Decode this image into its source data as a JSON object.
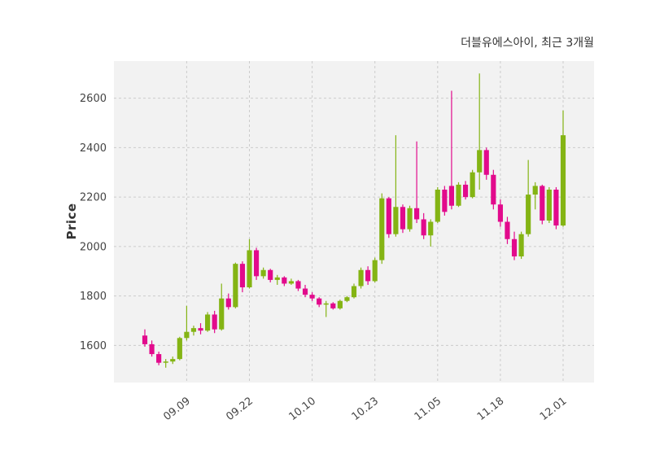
{
  "header": {
    "title": "더블유에스아이, 최근 3개월"
  },
  "chart_data": {
    "type": "candlestick",
    "title": "더블유에스아이, 최근 3개월",
    "ylabel": "Price",
    "ylim": [
      1450,
      2750
    ],
    "y_ticks": [
      1600,
      1800,
      2000,
      2200,
      2400,
      2600
    ],
    "x_ticks": [
      {
        "index": 6,
        "label": "09.09"
      },
      {
        "index": 15,
        "label": "09.22"
      },
      {
        "index": 24,
        "label": "10.10"
      },
      {
        "index": 33,
        "label": "10.23"
      },
      {
        "index": 42,
        "label": "11.05"
      },
      {
        "index": 51,
        "label": "11.18"
      },
      {
        "index": 60,
        "label": "12.01"
      }
    ],
    "grid": true,
    "legend": "none",
    "up_color": "#84b414",
    "down_color": "#e20a8c",
    "plot_bg": "#f2f2f2",
    "grid_color": "#cccccc",
    "grid_dash": "3,3",
    "candles_format": [
      "open",
      "high",
      "low",
      "close"
    ],
    "candles": [
      [
        1640,
        1665,
        1595,
        1605
      ],
      [
        1605,
        1620,
        1555,
        1565
      ],
      [
        1565,
        1575,
        1520,
        1530
      ],
      [
        1530,
        1545,
        1510,
        1535
      ],
      [
        1535,
        1555,
        1525,
        1545
      ],
      [
        1545,
        1635,
        1540,
        1630
      ],
      [
        1630,
        1760,
        1620,
        1655
      ],
      [
        1655,
        1680,
        1640,
        1670
      ],
      [
        1670,
        1690,
        1645,
        1660
      ],
      [
        1660,
        1735,
        1655,
        1725
      ],
      [
        1725,
        1740,
        1650,
        1665
      ],
      [
        1665,
        1850,
        1660,
        1790
      ],
      [
        1790,
        1810,
        1745,
        1755
      ],
      [
        1755,
        1935,
        1750,
        1930
      ],
      [
        1930,
        1940,
        1815,
        1835
      ],
      [
        1835,
        2030,
        1830,
        1985
      ],
      [
        1985,
        1995,
        1865,
        1880
      ],
      [
        1880,
        1915,
        1870,
        1905
      ],
      [
        1905,
        1910,
        1855,
        1865
      ],
      [
        1865,
        1885,
        1845,
        1875
      ],
      [
        1875,
        1880,
        1840,
        1850
      ],
      [
        1850,
        1870,
        1845,
        1860
      ],
      [
        1860,
        1865,
        1820,
        1830
      ],
      [
        1830,
        1845,
        1795,
        1805
      ],
      [
        1805,
        1815,
        1780,
        1790
      ],
      [
        1790,
        1795,
        1755,
        1765
      ],
      [
        1765,
        1780,
        1715,
        1770
      ],
      [
        1770,
        1775,
        1745,
        1750
      ],
      [
        1750,
        1785,
        1745,
        1780
      ],
      [
        1780,
        1800,
        1775,
        1795
      ],
      [
        1795,
        1850,
        1790,
        1840
      ],
      [
        1840,
        1915,
        1830,
        1905
      ],
      [
        1905,
        1920,
        1845,
        1860
      ],
      [
        1860,
        1955,
        1855,
        1945
      ],
      [
        1945,
        2215,
        1930,
        2195
      ],
      [
        2195,
        2200,
        2035,
        2050
      ],
      [
        2050,
        2450,
        2040,
        2160
      ],
      [
        2160,
        2170,
        2055,
        2070
      ],
      [
        2070,
        2165,
        2060,
        2155
      ],
      [
        2155,
        2425,
        2095,
        2110
      ],
      [
        2110,
        2135,
        2030,
        2045
      ],
      [
        2045,
        2110,
        2000,
        2100
      ],
      [
        2100,
        2240,
        2095,
        2230
      ],
      [
        2230,
        2245,
        2125,
        2140
      ],
      [
        2245,
        2630,
        2150,
        2165
      ],
      [
        2165,
        2260,
        2160,
        2250
      ],
      [
        2250,
        2265,
        2190,
        2200
      ],
      [
        2200,
        2310,
        2195,
        2300
      ],
      [
        2300,
        2700,
        2230,
        2390
      ],
      [
        2390,
        2400,
        2270,
        2290
      ],
      [
        2290,
        2310,
        2150,
        2170
      ],
      [
        2170,
        2190,
        2080,
        2100
      ],
      [
        2100,
        2120,
        2010,
        2030
      ],
      [
        2030,
        2060,
        1945,
        1960
      ],
      [
        1960,
        2060,
        1950,
        2050
      ],
      [
        2050,
        2350,
        2040,
        2210
      ],
      [
        2210,
        2260,
        2150,
        2245
      ],
      [
        2245,
        2250,
        2090,
        2105
      ],
      [
        2105,
        2240,
        2095,
        2230
      ],
      [
        2230,
        2240,
        2070,
        2085
      ],
      [
        2085,
        2550,
        2080,
        2450
      ]
    ]
  }
}
